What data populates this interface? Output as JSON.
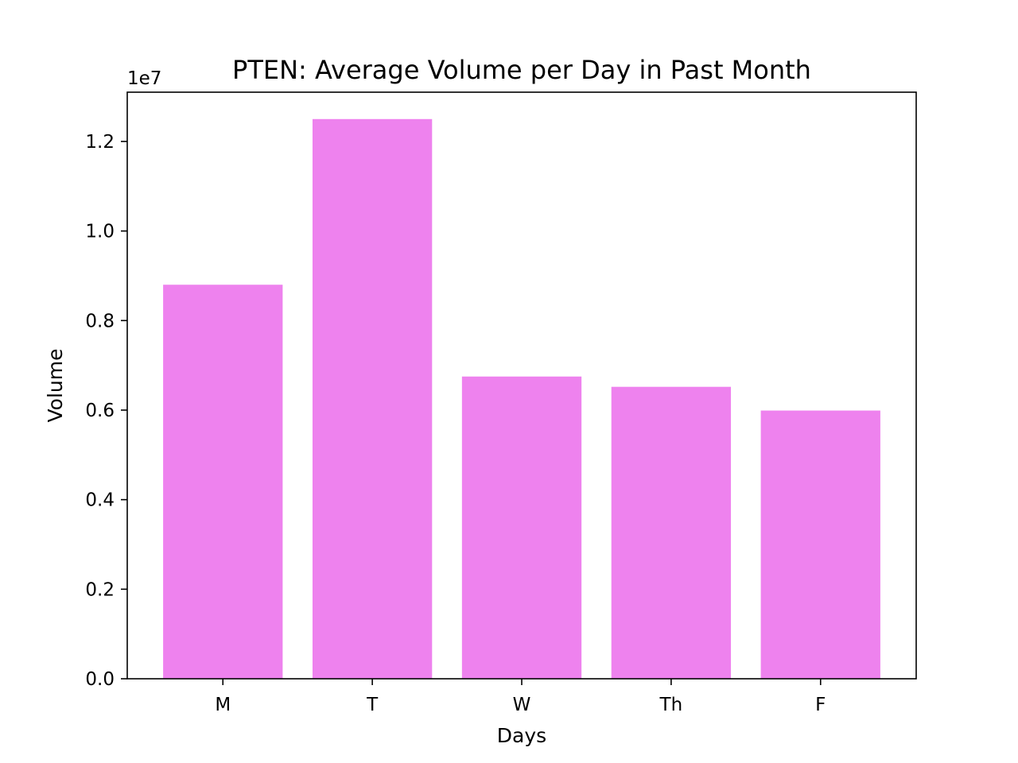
{
  "chart_data": {
    "type": "bar",
    "title": "PTEN: Average Volume per Day in Past Month",
    "xlabel": "Days",
    "ylabel": "Volume",
    "categories": [
      "M",
      "T",
      "W",
      "Th",
      "F"
    ],
    "values": [
      8800000,
      12500000,
      6750000,
      6520000,
      5990000
    ],
    "ylim": [
      0,
      13100000
    ],
    "y_ticks": [
      0,
      2000000,
      4000000,
      6000000,
      8000000,
      10000000,
      12000000
    ],
    "y_tick_labels": [
      "0.0",
      "0.2",
      "0.4",
      "0.6",
      "0.8",
      "1.0",
      "1.2"
    ],
    "y_offset_label": "1e7",
    "bar_color": "#ee82ee",
    "grid": false,
    "legend": "none"
  }
}
